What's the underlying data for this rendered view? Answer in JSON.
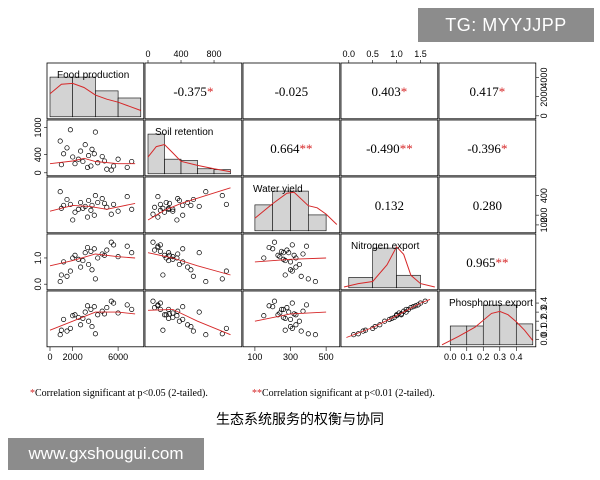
{
  "watermarks": {
    "top": "TG: MYYJJPP",
    "bottom": "www.gxshougui.com"
  },
  "caption": "生态系统服务的权衡与协同",
  "footnote": {
    "sig05_marker": "*",
    "sig05_text": "Correlation significant at p<0.05 (2-tailed).",
    "sig01_marker": "**",
    "sig01_text": "Correlation significant at p<0.01 (2-tailed)."
  },
  "colors": {
    "significance": "#d62728",
    "curve": "#d62728",
    "hist_fill": "#d3d3d3"
  },
  "chart_data": {
    "type": "scatter",
    "layout": "correlation pairs matrix",
    "variables": [
      "Food production",
      "Soil retention",
      "Water yield",
      "Nitrogen export",
      "Phosphorus export"
    ],
    "ranges": [
      [
        0,
        8000
      ],
      [
        0,
        1100
      ],
      [
        50,
        560
      ],
      [
        -0.1,
        1.8
      ],
      [
        -0.05,
        0.5
      ]
    ],
    "ticks": [
      [
        0,
        2000,
        6000
      ],
      [
        0,
        400,
        800
      ],
      [
        100,
        300,
        500
      ],
      [
        0.0,
        0.5,
        1.0,
        1.5
      ],
      [
        0.0,
        0.1,
        0.2,
        0.3,
        0.4
      ]
    ],
    "tick_labels": [
      [
        "0",
        "2000",
        "6000"
      ],
      [
        "0",
        "400",
        "800"
      ],
      [
        "100",
        "300",
        "500"
      ],
      [
        "0.0",
        "0.5",
        "1.0",
        "1.5"
      ],
      [
        "0.0",
        "0.1",
        "0.2",
        "0.3",
        "0.4"
      ]
    ],
    "left_axis_ticks": {
      "1": {
        "values": [
          0,
          400,
          1000
        ],
        "labels": [
          "0",
          "400",
          "1000"
        ]
      },
      "3": {
        "values": [
          0.0,
          1.0
        ],
        "labels": [
          "0.0",
          "1.0"
        ]
      }
    },
    "right_axis_ticks": {
      "0": {
        "values": [
          0,
          2000,
          4000
        ],
        "labels": [
          "0",
          "2000",
          "4000"
        ]
      },
      "2": {
        "values": [
          100,
          200,
          400
        ],
        "labels": [
          "100",
          "200",
          "400"
        ]
      },
      "4": {
        "values": [
          0.0,
          0.1,
          0.2,
          0.3,
          0.4
        ],
        "labels": [
          "0.0",
          "0.1",
          "0.2",
          "0.3",
          "0.4"
        ]
      }
    },
    "correlations": [
      {
        "row": 0,
        "col": 1,
        "r": "-0.375",
        "sig": "*"
      },
      {
        "row": 0,
        "col": 2,
        "r": "-0.025",
        "sig": ""
      },
      {
        "row": 0,
        "col": 3,
        "r": "0.403",
        "sig": "*"
      },
      {
        "row": 0,
        "col": 4,
        "r": "0.417",
        "sig": "*"
      },
      {
        "row": 1,
        "col": 2,
        "r": "0.664",
        "sig": "**"
      },
      {
        "row": 1,
        "col": 3,
        "r": "-0.490",
        "sig": "**"
      },
      {
        "row": 1,
        "col": 4,
        "r": "-0.396",
        "sig": "*"
      },
      {
        "row": 2,
        "col": 3,
        "r": "0.132",
        "sig": ""
      },
      {
        "row": 2,
        "col": 4,
        "r": "0.280",
        "sig": ""
      },
      {
        "row": 3,
        "col": 4,
        "r": "0.965",
        "sig": "**"
      }
    ],
    "histograms": [
      {
        "variable": "Food production",
        "bins": [
          0,
          2000,
          4000,
          6000,
          8000
        ],
        "density": [
          0.95,
          0.95,
          0.62,
          0.45
        ]
      },
      {
        "variable": "Soil retention",
        "bins": [
          0,
          200,
          400,
          600,
          800,
          1000
        ],
        "density": [
          0.95,
          0.35,
          0.32,
          0.12,
          0.1
        ]
      },
      {
        "variable": "Water yield",
        "bins": [
          100,
          200,
          300,
          400,
          500
        ],
        "density": [
          0.62,
          0.95,
          0.95,
          0.38
        ]
      },
      {
        "variable": "Nitrogen export",
        "bins": [
          0.0,
          0.5,
          1.0,
          1.5
        ],
        "density": [
          0.25,
          0.95,
          0.3
        ]
      },
      {
        "variable": "Phosphorus export",
        "bins": [
          0.0,
          0.1,
          0.2,
          0.3,
          0.4,
          0.5
        ],
        "density": [
          0.45,
          0.45,
          0.95,
          0.95,
          0.5
        ]
      }
    ],
    "density_curves": [
      [
        [
          0,
          0.55
        ],
        [
          1000,
          0.78
        ],
        [
          2000,
          0.8
        ],
        [
          3000,
          0.7
        ],
        [
          4000,
          0.52
        ],
        [
          5000,
          0.42
        ],
        [
          6000,
          0.35
        ],
        [
          7000,
          0.25
        ],
        [
          8000,
          0.15
        ]
      ],
      [
        [
          0,
          0.4
        ],
        [
          100,
          0.65
        ],
        [
          200,
          0.7
        ],
        [
          300,
          0.5
        ],
        [
          400,
          0.3
        ],
        [
          600,
          0.2
        ],
        [
          800,
          0.12
        ],
        [
          1000,
          0.05
        ]
      ],
      [
        [
          100,
          0.3
        ],
        [
          200,
          0.65
        ],
        [
          280,
          0.9
        ],
        [
          320,
          0.92
        ],
        [
          400,
          0.6
        ],
        [
          450,
          0.55
        ],
        [
          500,
          0.4
        ],
        [
          560,
          0.15
        ]
      ],
      [
        [
          -0.1,
          0.02
        ],
        [
          0.2,
          0.1
        ],
        [
          0.5,
          0.15
        ],
        [
          0.8,
          0.55
        ],
        [
          1.0,
          0.98
        ],
        [
          1.15,
          0.8
        ],
        [
          1.3,
          0.3
        ],
        [
          1.5,
          0.1
        ],
        [
          1.8,
          0.02
        ]
      ],
      [
        [
          -0.05,
          0.0
        ],
        [
          0.05,
          0.2
        ],
        [
          0.15,
          0.42
        ],
        [
          0.25,
          0.75
        ],
        [
          0.3,
          0.8
        ],
        [
          0.35,
          0.72
        ],
        [
          0.4,
          0.55
        ],
        [
          0.45,
          0.35
        ],
        [
          0.5,
          0.1
        ]
      ]
    ],
    "points": [
      [
        1200,
        420,
        300,
        0.85,
        0.22
      ],
      [
        1800,
        950,
        310,
        0.5,
        0.12
      ],
      [
        2200,
        200,
        230,
        1.1,
        0.27
      ],
      [
        2500,
        300,
        260,
        0.95,
        0.24
      ],
      [
        2900,
        250,
        270,
        0.9,
        0.23
      ],
      [
        3100,
        620,
        290,
        1.2,
        0.3
      ],
      [
        3400,
        380,
        350,
        0.75,
        0.2
      ],
      [
        3600,
        150,
        250,
        1.25,
        0.33
      ],
      [
        3900,
        420,
        200,
        1.35,
        0.36
      ],
      [
        4200,
        220,
        330,
        1.0,
        0.27
      ],
      [
        4600,
        360,
        370,
        1.15,
        0.31
      ],
      [
        5000,
        80,
        280,
        1.3,
        0.35
      ],
      [
        5600,
        150,
        310,
        1.5,
        0.4
      ],
      [
        6000,
        300,
        240,
        1.05,
        0.29
      ],
      [
        6800,
        120,
        390,
        1.45,
        0.38
      ],
      [
        7200,
        250,
        260,
        1.2,
        0.33
      ],
      [
        900,
        700,
        440,
        0.1,
        0.05
      ],
      [
        1500,
        550,
        360,
        0.3,
        0.09
      ],
      [
        2700,
        480,
        330,
        0.65,
        0.16
      ],
      [
        3300,
        120,
        180,
        1.4,
        0.37
      ],
      [
        4000,
        900,
        400,
        0.2,
        0.06
      ],
      [
        2000,
        350,
        150,
        1.0,
        0.26
      ],
      [
        5400,
        60,
        210,
        1.6,
        0.42
      ],
      [
        1000,
        180,
        270,
        0.35,
        0.1
      ],
      [
        3700,
        520,
        300,
        0.55,
        0.14
      ],
      [
        4800,
        260,
        320,
        1.1,
        0.28
      ]
    ],
    "smooth_lines": {
      "1-0": [
        [
          0,
          200
        ],
        [
          2000,
          260
        ],
        [
          3000,
          320
        ],
        [
          4000,
          250
        ],
        [
          6000,
          200
        ],
        [
          7500,
          200
        ]
      ],
      "2-0": [
        [
          0,
          240
        ],
        [
          2000,
          300
        ],
        [
          3500,
          290
        ],
        [
          5000,
          260
        ],
        [
          7500,
          320
        ]
      ],
      "2-1": [
        [
          0,
          150
        ],
        [
          200,
          250
        ],
        [
          400,
          320
        ],
        [
          700,
          400
        ],
        [
          1000,
          480
        ]
      ],
      "3-0": [
        [
          0,
          0.7
        ],
        [
          2000,
          0.9
        ],
        [
          4000,
          1.15
        ],
        [
          6000,
          1.05
        ],
        [
          7500,
          1.0
        ]
      ],
      "3-1": [
        [
          0,
          1.2
        ],
        [
          300,
          1.0
        ],
        [
          600,
          0.7
        ],
        [
          1000,
          0.35
        ]
      ],
      "3-2": [
        [
          100,
          0.85
        ],
        [
          300,
          0.95
        ],
        [
          500,
          1.0
        ]
      ],
      "4-0": [
        [
          0,
          0.1
        ],
        [
          2000,
          0.2
        ],
        [
          4000,
          0.3
        ],
        [
          6000,
          0.3
        ],
        [
          7500,
          0.28
        ]
      ],
      "4-1": [
        [
          0,
          0.32
        ],
        [
          300,
          0.33
        ],
        [
          600,
          0.2
        ],
        [
          1000,
          0.05
        ]
      ],
      "4-2": [
        [
          100,
          0.2
        ],
        [
          300,
          0.28
        ],
        [
          500,
          0.3
        ]
      ],
      "4-3": [
        [
          -0.05,
          0.02
        ],
        [
          0.5,
          0.13
        ],
        [
          1.0,
          0.26
        ],
        [
          1.5,
          0.4
        ],
        [
          1.7,
          0.44
        ]
      ]
    }
  }
}
